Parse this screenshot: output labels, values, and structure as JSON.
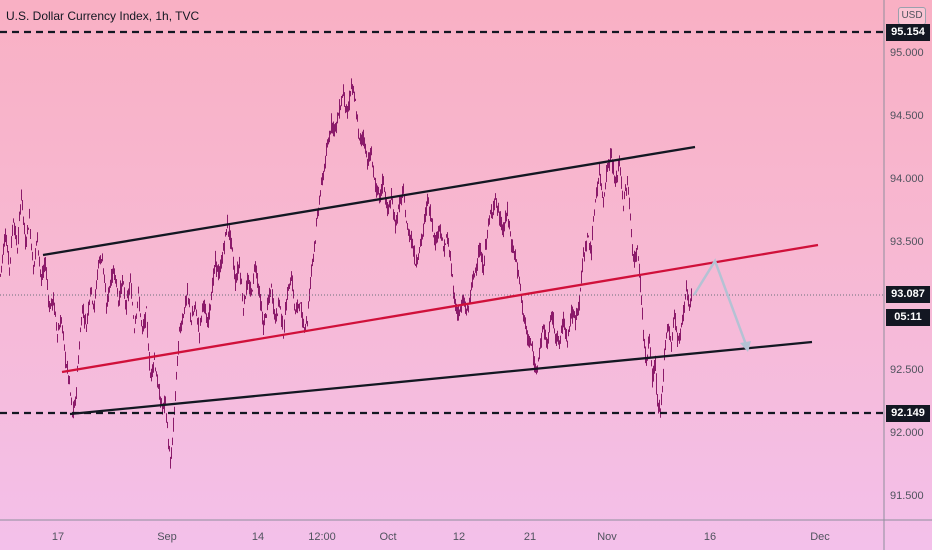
{
  "title": "U.S. Dollar Currency Index, 1h, TVC",
  "currency_button": "USD",
  "chart_data": {
    "type": "candlestick",
    "title": "U.S. Dollar Currency Index, 1h, TVC",
    "y_ticks": [
      "95.000",
      "94.500",
      "94.000",
      "93.500",
      "92.500",
      "92.000",
      "91.500"
    ],
    "y_values": [
      95.0,
      94.5,
      94.0,
      93.5,
      92.5,
      92.0,
      91.5
    ],
    "ylim": [
      91.3,
      95.3
    ],
    "x_ticks": [
      "17",
      "Sep",
      "14",
      "12:00",
      "Oct",
      "12",
      "21",
      "Nov",
      "16",
      "Dec"
    ],
    "last_price": "93.087",
    "countdown": "05:11",
    "support_level": "92.149",
    "resistance_level": "95.154",
    "colors": {
      "candle": "#8b1a6a",
      "midline": "#d0103a",
      "channel": "#131722",
      "projection": "#b4c2d4"
    },
    "price_path": [
      [
        0,
        93.25
      ],
      [
        5,
        93.6
      ],
      [
        9,
        93.3
      ],
      [
        13,
        93.7
      ],
      [
        17,
        93.45
      ],
      [
        21,
        93.9
      ],
      [
        25,
        93.5
      ],
      [
        29,
        93.7
      ],
      [
        33,
        93.3
      ],
      [
        37,
        93.55
      ],
      [
        41,
        93.2
      ],
      [
        45,
        93.35
      ],
      [
        49,
        93.0
      ],
      [
        53,
        93.05
      ],
      [
        57,
        92.8
      ],
      [
        61,
        92.9
      ],
      [
        65,
        92.6
      ],
      [
        69,
        92.4
      ],
      [
        72,
        92.15
      ],
      [
        75,
        92.25
      ],
      [
        78,
        92.6
      ],
      [
        82,
        93.0
      ],
      [
        86,
        92.85
      ],
      [
        90,
        93.15
      ],
      [
        94,
        93.0
      ],
      [
        98,
        93.35
      ],
      [
        102,
        93.4
      ],
      [
        106,
        93.0
      ],
      [
        110,
        93.2
      ],
      [
        114,
        93.3
      ],
      [
        118,
        93.05
      ],
      [
        122,
        93.2
      ],
      [
        126,
        93.0
      ],
      [
        130,
        93.2
      ],
      [
        134,
        92.85
      ],
      [
        138,
        93.1
      ],
      [
        142,
        92.8
      ],
      [
        146,
        92.95
      ],
      [
        150,
        92.45
      ],
      [
        154,
        92.6
      ],
      [
        158,
        92.35
      ],
      [
        162,
        92.2
      ],
      [
        165,
        92.25
      ],
      [
        168,
        91.95
      ],
      [
        170,
        91.75
      ],
      [
        173,
        92.05
      ],
      [
        176,
        92.45
      ],
      [
        179,
        92.8
      ],
      [
        183,
        92.95
      ],
      [
        187,
        93.1
      ],
      [
        191,
        92.9
      ],
      [
        195,
        93.0
      ],
      [
        199,
        92.8
      ],
      [
        203,
        93.05
      ],
      [
        207,
        92.85
      ],
      [
        211,
        93.1
      ],
      [
        215,
        93.35
      ],
      [
        219,
        93.25
      ],
      [
        223,
        93.45
      ],
      [
        227,
        93.65
      ],
      [
        231,
        93.5
      ],
      [
        235,
        93.2
      ],
      [
        239,
        93.35
      ],
      [
        243,
        93.0
      ],
      [
        247,
        93.2
      ],
      [
        251,
        93.1
      ],
      [
        255,
        93.35
      ],
      [
        259,
        93.1
      ],
      [
        263,
        92.85
      ],
      [
        267,
        93.0
      ],
      [
        271,
        93.15
      ],
      [
        275,
        92.9
      ],
      [
        279,
        93.05
      ],
      [
        283,
        92.8
      ],
      [
        287,
        93.1
      ],
      [
        291,
        93.25
      ],
      [
        295,
        92.95
      ],
      [
        299,
        93.05
      ],
      [
        303,
        92.85
      ],
      [
        307,
        92.9
      ],
      [
        311,
        93.3
      ],
      [
        315,
        93.55
      ],
      [
        319,
        93.85
      ],
      [
        323,
        94.05
      ],
      [
        327,
        94.25
      ],
      [
        331,
        94.45
      ],
      [
        335,
        94.4
      ],
      [
        339,
        94.55
      ],
      [
        343,
        94.7
      ],
      [
        347,
        94.5
      ],
      [
        351,
        94.75
      ],
      [
        355,
        94.6
      ],
      [
        359,
        94.3
      ],
      [
        363,
        94.35
      ],
      [
        367,
        94.15
      ],
      [
        371,
        94.2
      ],
      [
        375,
        93.95
      ],
      [
        379,
        93.85
      ],
      [
        383,
        94.0
      ],
      [
        387,
        93.75
      ],
      [
        391,
        93.85
      ],
      [
        395,
        93.65
      ],
      [
        399,
        93.8
      ],
      [
        403,
        93.9
      ],
      [
        407,
        93.6
      ],
      [
        411,
        93.55
      ],
      [
        415,
        93.35
      ],
      [
        419,
        93.45
      ],
      [
        423,
        93.6
      ],
      [
        427,
        93.85
      ],
      [
        431,
        93.7
      ],
      [
        435,
        93.5
      ],
      [
        439,
        93.65
      ],
      [
        443,
        93.45
      ],
      [
        447,
        93.55
      ],
      [
        451,
        93.3
      ],
      [
        455,
        93.0
      ],
      [
        459,
        92.95
      ],
      [
        463,
        93.05
      ],
      [
        467,
        92.95
      ],
      [
        471,
        93.15
      ],
      [
        475,
        93.3
      ],
      [
        479,
        93.45
      ],
      [
        483,
        93.3
      ],
      [
        487,
        93.6
      ],
      [
        491,
        93.75
      ],
      [
        495,
        93.85
      ],
      [
        499,
        93.7
      ],
      [
        503,
        93.6
      ],
      [
        507,
        93.75
      ],
      [
        511,
        93.5
      ],
      [
        515,
        93.4
      ],
      [
        519,
        93.2
      ],
      [
        523,
        92.95
      ],
      [
        527,
        92.75
      ],
      [
        531,
        92.7
      ],
      [
        535,
        92.5
      ],
      [
        539,
        92.65
      ],
      [
        543,
        92.85
      ],
      [
        547,
        92.7
      ],
      [
        551,
        92.95
      ],
      [
        555,
        92.8
      ],
      [
        559,
        92.7
      ],
      [
        563,
        92.9
      ],
      [
        567,
        92.75
      ],
      [
        571,
        92.95
      ],
      [
        575,
        92.9
      ],
      [
        579,
        93.05
      ],
      [
        583,
        93.4
      ],
      [
        587,
        93.55
      ],
      [
        591,
        93.45
      ],
      [
        595,
        93.85
      ],
      [
        599,
        94.05
      ],
      [
        603,
        93.85
      ],
      [
        607,
        94.1
      ],
      [
        611,
        94.2
      ],
      [
        615,
        93.95
      ],
      [
        619,
        94.15
      ],
      [
        623,
        93.8
      ],
      [
        627,
        94.0
      ],
      [
        631,
        93.6
      ],
      [
        633,
        93.35
      ],
      [
        637,
        93.45
      ],
      [
        640,
        93.2
      ],
      [
        643,
        92.8
      ],
      [
        646,
        92.55
      ],
      [
        649,
        92.75
      ],
      [
        652,
        92.45
      ],
      [
        655,
        92.55
      ],
      [
        657,
        92.25
      ],
      [
        660,
        92.15
      ],
      [
        662,
        92.35
      ],
      [
        665,
        92.75
      ],
      [
        668,
        92.85
      ],
      [
        671,
        92.7
      ],
      [
        674,
        92.95
      ],
      [
        677,
        92.75
      ],
      [
        680,
        92.8
      ],
      [
        683,
        92.95
      ],
      [
        686,
        93.15
      ],
      [
        689,
        93.0
      ],
      [
        692,
        93.1
      ]
    ]
  }
}
